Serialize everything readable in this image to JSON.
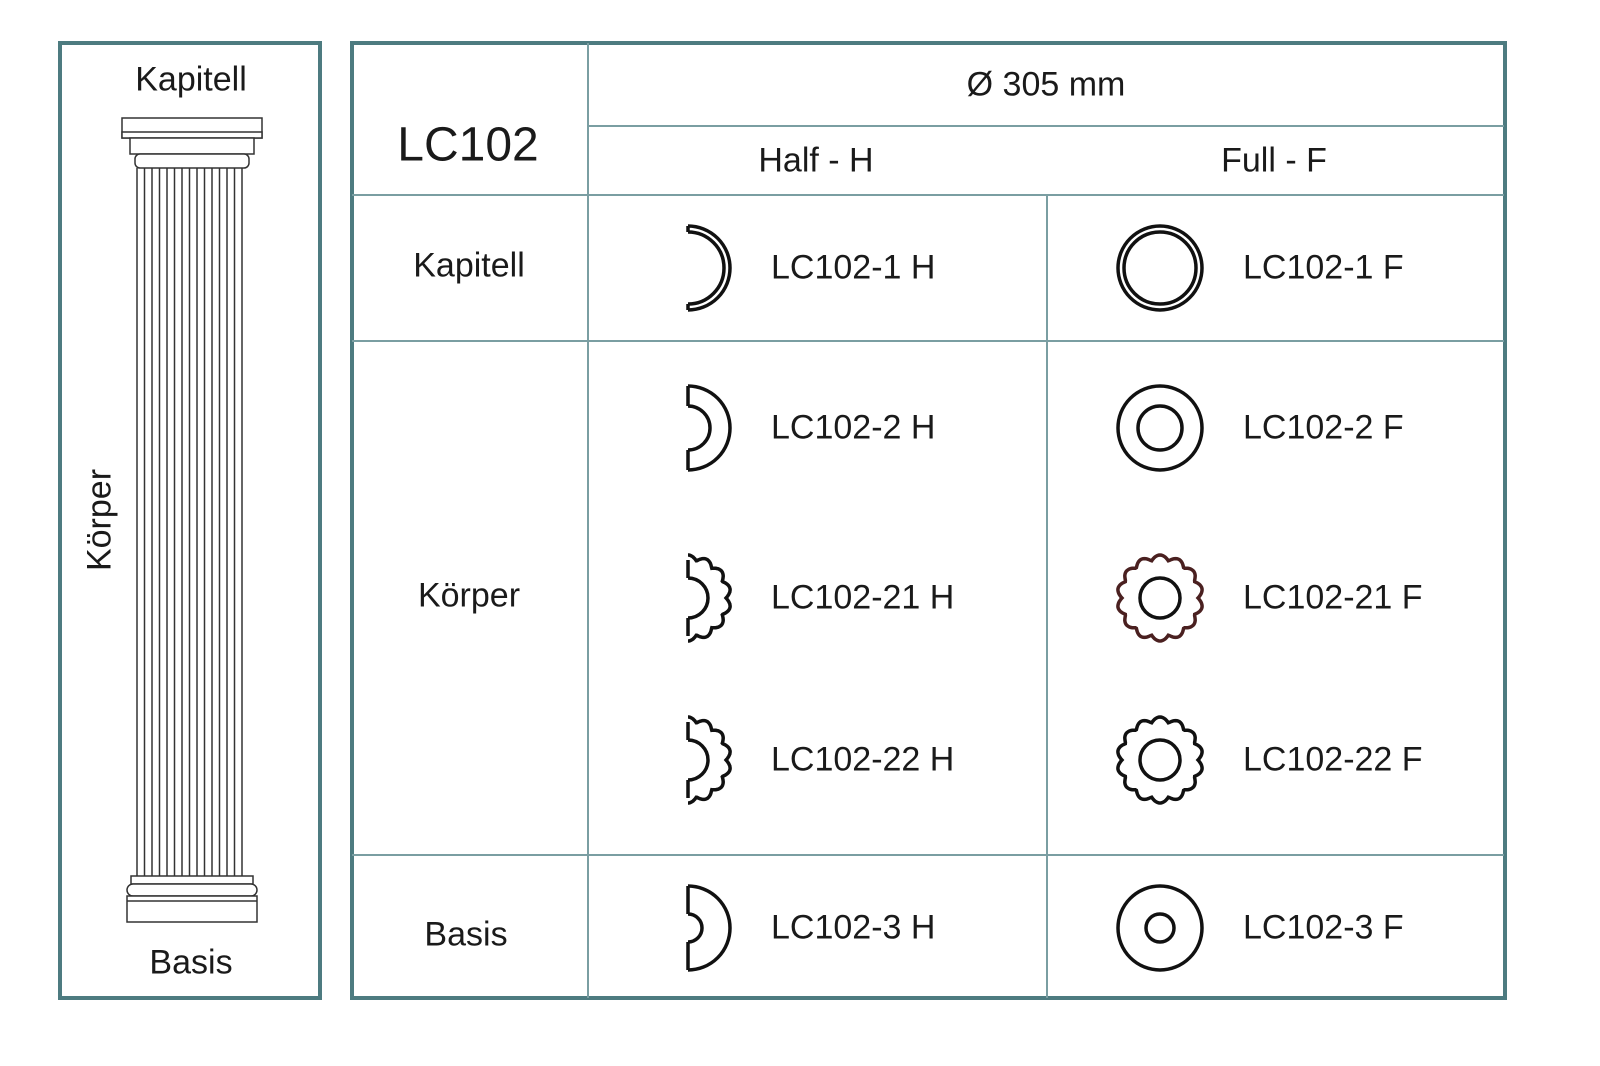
{
  "column_panel": {
    "top_label": "Kapitell",
    "side_label": "Körper",
    "bottom_label": "Basis"
  },
  "table": {
    "model": "LC102",
    "diameter": "Ø 305 mm",
    "col_half": "Half - H",
    "col_full": "Full - F",
    "rows": [
      {
        "section": "Kapitell",
        "half": "LC102-1 H",
        "full": "LC102-1 F",
        "icon": "thick-ring-icon"
      },
      {
        "section": "Körper",
        "half": "LC102-2 H",
        "full": "LC102-2 F",
        "icon": "ring-icon"
      },
      {
        "half": "LC102-21 H",
        "full": "LC102-21 F",
        "icon": "fluted-ring-icon"
      },
      {
        "half": "LC102-22 H",
        "full": "LC102-22 F",
        "icon": "fluted-ring-icon"
      },
      {
        "section": "Basis",
        "half": "LC102-3 H",
        "full": "LC102-3 F",
        "icon": "wide-ring-icon"
      }
    ]
  },
  "colors": {
    "border": "#4d7b80",
    "grid": "#7a9ea2",
    "fluted_21_full": "#4a2020"
  }
}
